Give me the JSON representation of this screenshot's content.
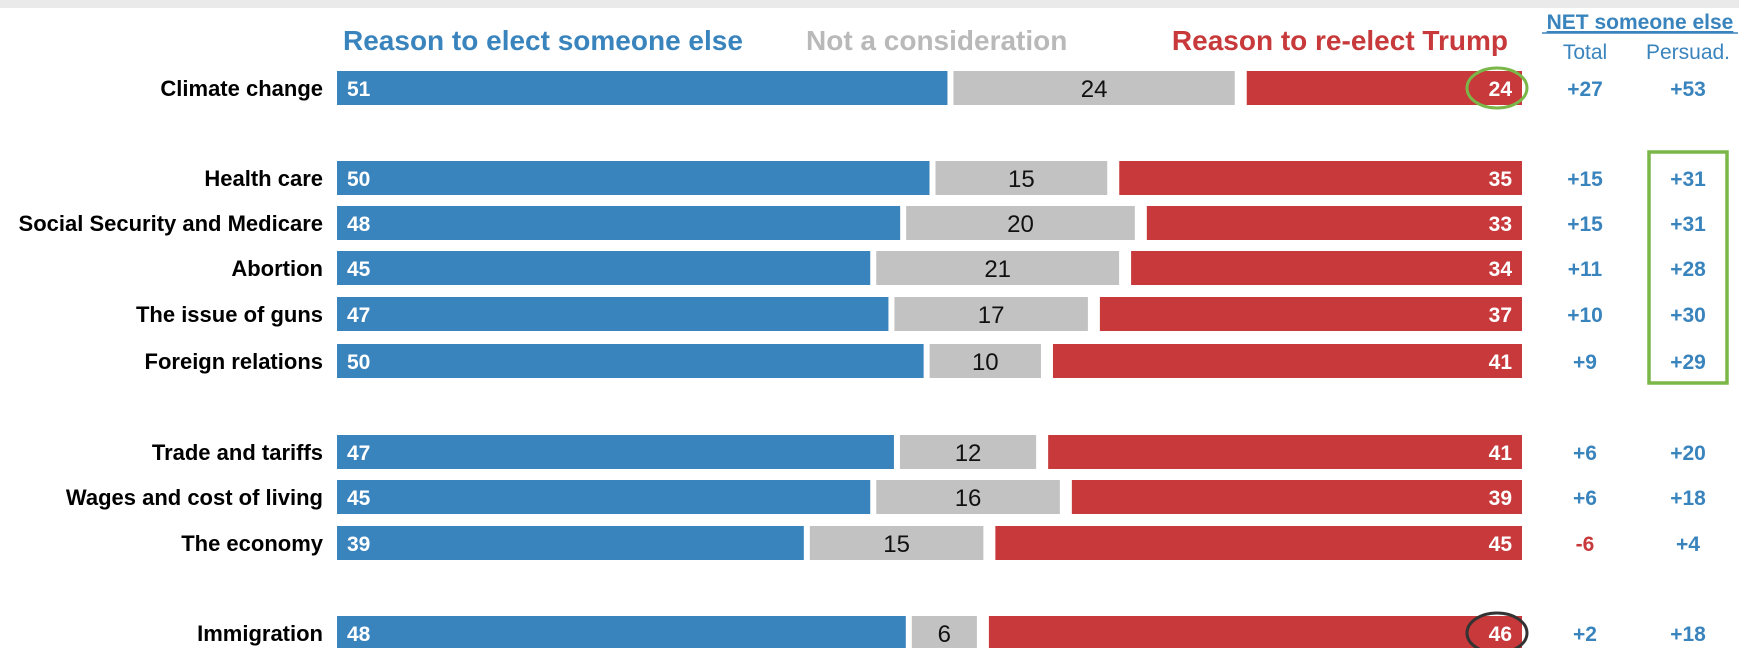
{
  "chart_data": {
    "type": "bar",
    "stacked": true,
    "orientation": "horizontal",
    "percent_scale": true,
    "legend": [
      {
        "name": "Reason to elect someone else",
        "color": "#3a84bd"
      },
      {
        "name": "Not a consideration",
        "color": "#c2c2c2"
      },
      {
        "name": "Reason to re-elect Trump",
        "color": "#c7393a"
      }
    ],
    "net_header": {
      "title": "NET someone else",
      "col1": "Total",
      "col2": "Persuad."
    },
    "categories": [
      "Climate change",
      "Health care",
      "Social Security and Medicare",
      "Abortion",
      "The issue of guns",
      "Foreign relations",
      "Trade and tariffs",
      "Wages and cost of living",
      "The economy",
      "Immigration"
    ],
    "groups": [
      [
        0
      ],
      [
        1,
        2,
        3,
        4,
        5
      ],
      [
        6,
        7,
        8
      ],
      [
        9
      ]
    ],
    "series": [
      {
        "name": "Reason to elect someone else",
        "values": [
          51,
          50,
          48,
          45,
          47,
          50,
          47,
          45,
          39,
          48
        ]
      },
      {
        "name": "Not a consideration",
        "values": [
          24,
          15,
          20,
          21,
          17,
          10,
          12,
          16,
          15,
          6
        ]
      },
      {
        "name": "Reason to re-elect Trump",
        "values": [
          24,
          35,
          33,
          34,
          37,
          41,
          41,
          39,
          45,
          46
        ]
      }
    ],
    "net_total": [
      "+27",
      "+15",
      "+15",
      "+11",
      "+10",
      "+9",
      "+6",
      "+6",
      "-6",
      "+2"
    ],
    "net_persuadable": [
      "+53",
      "+31",
      "+31",
      "+28",
      "+30",
      "+29",
      "+20",
      "+18",
      "+4",
      "+18"
    ],
    "highlights": {
      "circled_values": [
        {
          "row": 0,
          "series": 2,
          "color": "#7ab648"
        },
        {
          "row": 9,
          "series": 2,
          "color": "#333333"
        }
      ],
      "boxed_persuadable_rows": [
        1,
        5
      ],
      "box_color": "#7ab648"
    },
    "colors": {
      "blue": "#3a84bd",
      "gray": "#c2c2c2",
      "red": "#c7393a",
      "net_positive": "#3a84bd",
      "net_negative": "#c7393a"
    }
  }
}
